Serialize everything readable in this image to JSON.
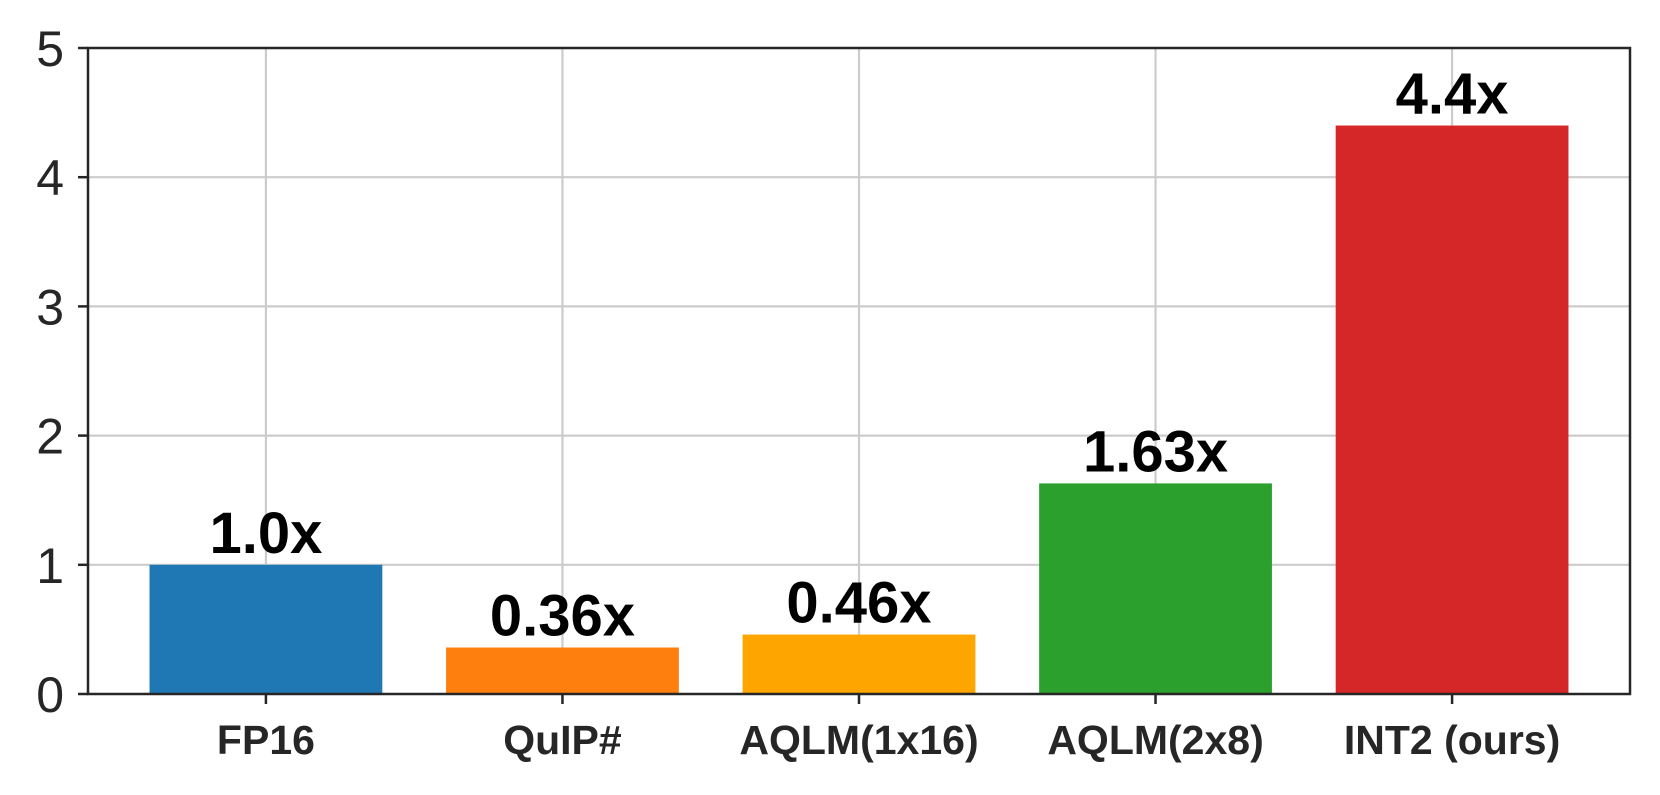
{
  "chart_data": {
    "type": "bar",
    "categories": [
      "FP16",
      "QuIP#",
      "AQLM(1x16)",
      "AQLM(2x8)",
      "INT2 (ours)"
    ],
    "values": [
      1.0,
      0.36,
      0.46,
      1.63,
      4.4
    ],
    "data_labels": [
      "1.0x",
      "0.36x",
      "0.46x",
      "1.63x",
      "4.4x"
    ],
    "bar_colors": [
      "#1f77b4",
      "#ff7f0e",
      "#ffa500",
      "#2ca02c",
      "#d62728"
    ],
    "ylim": [
      0,
      5
    ],
    "yticks": [
      0,
      1,
      2,
      3,
      4,
      5
    ],
    "ytick_labels": [
      "0",
      "1",
      "2",
      "3",
      "4",
      "5"
    ],
    "grid": true,
    "title": "",
    "xlabel": "",
    "ylabel": ""
  }
}
